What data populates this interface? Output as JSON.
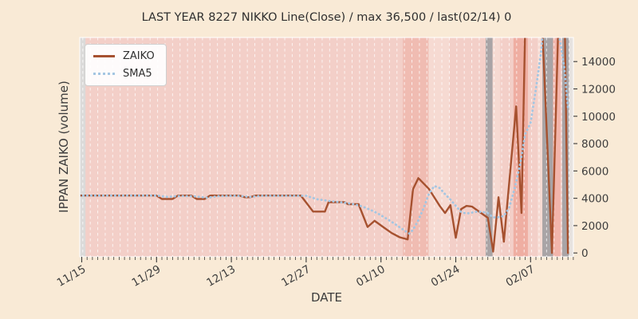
{
  "title": "LAST YEAR 8227 NIKKO Line(Close) / max 36,500 / last(02/14) 0",
  "axes": {
    "xlabel": "DATE",
    "ylabel": "IPPAN ZAIKO (volume)"
  },
  "legend": {
    "items": [
      {
        "label": "ZAIKO",
        "style": "solid",
        "color": "#a6512f"
      },
      {
        "label": "SMA5",
        "style": "dotted",
        "color": "#a4c6e2"
      }
    ]
  },
  "colors": {
    "figure_bg": "#f9ead6",
    "plot_bg": "#f3cfc8",
    "text": "#3d3d3d",
    "tick": "#3a3a3a",
    "gridline": "rgba(255,255,255,0.75)"
  },
  "chart_data": {
    "type": "line",
    "title": "LAST YEAR 8227 NIKKO Line(Close) / max 36,500 / last(02/14) 0",
    "xlabel": "DATE",
    "ylabel": "IPPAN ZAIKO (volume)",
    "x_axis": {
      "unit": "days since 11/15",
      "start_label": "11/15",
      "end_label": "02/14",
      "ticks": [
        {
          "day": 0,
          "label": "11/15"
        },
        {
          "day": 14,
          "label": "11/29"
        },
        {
          "day": 28,
          "label": "12/13"
        },
        {
          "day": 42,
          "label": "12/27"
        },
        {
          "day": 56,
          "label": "01/10"
        },
        {
          "day": 70,
          "label": "01/24"
        },
        {
          "day": 84,
          "label": "02/07"
        }
      ],
      "minor_tick_every_days": 1,
      "range_days": [
        -0.4,
        92.2
      ]
    },
    "y_axis": {
      "ticks": [
        0,
        2000,
        4000,
        6000,
        8000,
        10000,
        12000,
        14000
      ],
      "ylim": [
        -300,
        15750
      ],
      "side": "right"
    },
    "max_annotated": 36500,
    "last_annotated": {
      "date": "02/14",
      "value": 0
    },
    "series": [
      {
        "name": "ZAIKO",
        "style": "solid",
        "color": "#a6512f",
        "points": [
          [
            -0.5,
            4200
          ],
          [
            14,
            4200
          ],
          [
            15,
            3950
          ],
          [
            17,
            3950
          ],
          [
            18,
            4200
          ],
          [
            20.5,
            4200
          ],
          [
            21.5,
            3950
          ],
          [
            23,
            3950
          ],
          [
            24,
            4200
          ],
          [
            29.5,
            4200
          ],
          [
            30.5,
            4080
          ],
          [
            31.5,
            4080
          ],
          [
            32.5,
            4200
          ],
          [
            41,
            4200
          ],
          [
            43.3,
            3030
          ],
          [
            45.5,
            3030
          ],
          [
            46.2,
            3715
          ],
          [
            49.2,
            3715
          ],
          [
            49.8,
            3570
          ],
          [
            51.8,
            3570
          ],
          [
            53.5,
            1900
          ],
          [
            54.8,
            2350
          ],
          [
            56.5,
            1870
          ],
          [
            58,
            1460
          ],
          [
            59.5,
            1150
          ],
          [
            61,
            990
          ],
          [
            62,
            4670
          ],
          [
            63,
            5480
          ],
          [
            65,
            4670
          ],
          [
            67,
            3440
          ],
          [
            68,
            2920
          ],
          [
            69,
            3500
          ],
          [
            70,
            1110
          ],
          [
            71,
            3210
          ],
          [
            72,
            3440
          ],
          [
            73,
            3400
          ],
          [
            76,
            2570
          ],
          [
            77,
            100
          ],
          [
            78,
            4080
          ],
          [
            79,
            820
          ],
          [
            81.3,
            10730
          ],
          [
            82.3,
            2920
          ],
          [
            84,
            36500
          ],
          [
            88,
            0
          ],
          [
            90,
            28000
          ],
          [
            91,
            0
          ]
        ]
      },
      {
        "name": "SMA5",
        "style": "dotted",
        "color": "#a4c6e2",
        "points": [
          [
            -0.5,
            4200
          ],
          [
            14,
            4200
          ],
          [
            16,
            4100
          ],
          [
            18.5,
            4170
          ],
          [
            21,
            4150
          ],
          [
            23.5,
            4040
          ],
          [
            25.5,
            4160
          ],
          [
            29,
            4190
          ],
          [
            31.5,
            4100
          ],
          [
            33.5,
            4180
          ],
          [
            42,
            4180
          ],
          [
            43,
            4060
          ],
          [
            44,
            3930
          ],
          [
            45.5,
            3850
          ],
          [
            46.5,
            3790
          ],
          [
            48,
            3730
          ],
          [
            49.5,
            3660
          ],
          [
            51,
            3560
          ],
          [
            52.5,
            3400
          ],
          [
            54,
            3160
          ],
          [
            55.5,
            2870
          ],
          [
            57,
            2520
          ],
          [
            58.5,
            2150
          ],
          [
            60,
            1750
          ],
          [
            61.3,
            1420
          ],
          [
            62,
            1700
          ],
          [
            63,
            2400
          ],
          [
            64,
            3300
          ],
          [
            65,
            4350
          ],
          [
            66,
            4900
          ],
          [
            67,
            4750
          ],
          [
            68,
            4300
          ],
          [
            69,
            3900
          ],
          [
            70,
            3450
          ],
          [
            71,
            3000
          ],
          [
            72,
            2880
          ],
          [
            73,
            2950
          ],
          [
            74,
            3030
          ],
          [
            75,
            3000
          ],
          [
            76,
            2920
          ],
          [
            77,
            2600
          ],
          [
            78,
            2620
          ],
          [
            79,
            2700
          ],
          [
            80,
            3300
          ],
          [
            81,
            4700
          ],
          [
            82,
            6400
          ],
          [
            83,
            8700
          ],
          [
            84,
            9500
          ],
          [
            85,
            12000
          ],
          [
            86,
            14800
          ],
          [
            86.6,
            17500
          ],
          [
            88.6,
            17800
          ],
          [
            89.6,
            15300
          ],
          [
            90.3,
            13600
          ],
          [
            91,
            10600
          ]
        ]
      }
    ],
    "bands": [
      {
        "from_day": -0.4,
        "to_day": 0.7,
        "color": "#dbdad9"
      },
      {
        "from_day": 60.1,
        "to_day": 64.9,
        "color": "#f0bcb2"
      },
      {
        "from_day": 64.9,
        "to_day": 68.8,
        "color": "#f6dad2"
      },
      {
        "from_day": 75.6,
        "to_day": 76.9,
        "color": "#a9a4a6"
      },
      {
        "from_day": 76.9,
        "to_day": 78.3,
        "color": "#f6dad2"
      },
      {
        "from_day": 80.8,
        "to_day": 83.5,
        "color": "#efaea2"
      },
      {
        "from_day": 85.3,
        "to_day": 86.2,
        "color": "#f6dad2"
      },
      {
        "from_day": 86.2,
        "to_day": 88.2,
        "color": "#a9a4a6"
      },
      {
        "from_day": 88.2,
        "to_day": 89.6,
        "color": "#f2b5ab"
      },
      {
        "from_day": 89.9,
        "to_day": 91.2,
        "color": "#a9a4a6"
      },
      {
        "from_day": 91.2,
        "to_day": 92.2,
        "color": "#e7e3e0"
      }
    ]
  }
}
